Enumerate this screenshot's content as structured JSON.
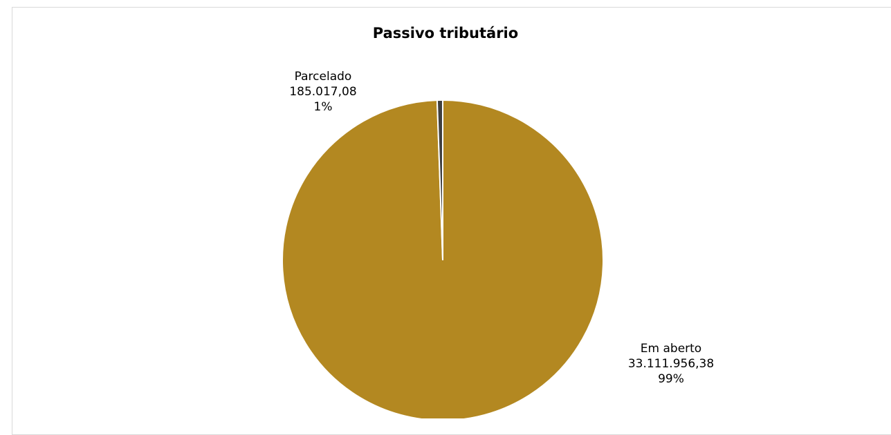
{
  "chart_data": {
    "type": "pie",
    "title": "Passivo tributário",
    "slices": [
      {
        "label": "Em aberto",
        "value": 33111956.38,
        "value_text": "33.111.956,38",
        "percent_text": "99%",
        "color": "#b38821"
      },
      {
        "label": "Parcelado",
        "value": 185017.08,
        "value_text": "185.017,08",
        "percent_text": "1%",
        "color": "#404040"
      }
    ],
    "legend": "none"
  }
}
